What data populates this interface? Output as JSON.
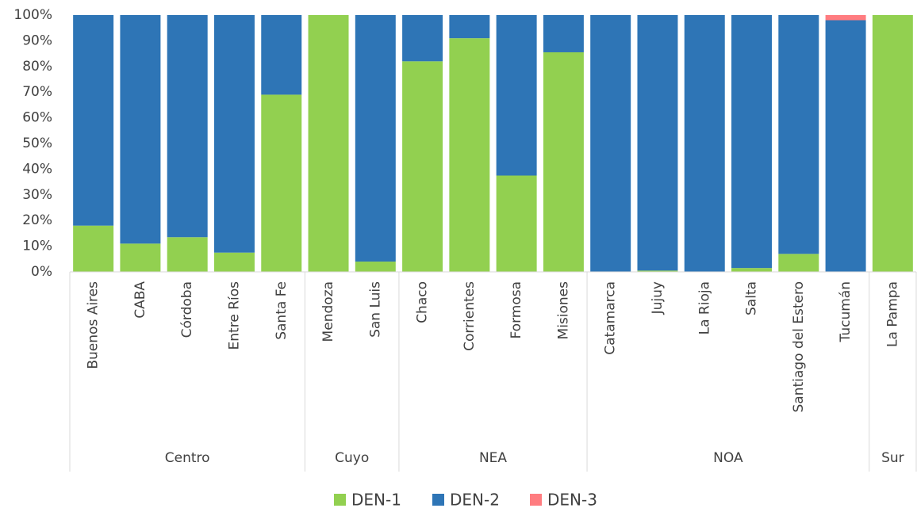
{
  "chart_data": {
    "type": "stacked_bar_100",
    "groups": [
      {
        "name": "Centro",
        "categories": [
          "Buenos Aires",
          "CABA",
          "Córdoba",
          "Entre Ríos",
          "Santa Fe"
        ]
      },
      {
        "name": "Cuyo",
        "categories": [
          "Mendoza",
          "San Luis"
        ]
      },
      {
        "name": "NEA",
        "categories": [
          "Chaco",
          "Corrientes",
          "Formosa",
          "Misiones"
        ]
      },
      {
        "name": "NOA",
        "categories": [
          "Catamarca",
          "Jujuy",
          "La Rioja",
          "Salta",
          "Santiago del Estero",
          "Tucumán"
        ]
      },
      {
        "name": "Sur",
        "categories": [
          "La Pampa"
        ]
      }
    ],
    "series": [
      {
        "name": "DEN-1",
        "color": "#92d050",
        "values": [
          18,
          11,
          13.5,
          7.5,
          69,
          100,
          4,
          82,
          91,
          37.5,
          85.5,
          0,
          0.5,
          0,
          1.5,
          7,
          0,
          100
        ]
      },
      {
        "name": "DEN-2",
        "color": "#2e75b6",
        "values": [
          82,
          89,
          86.5,
          92.5,
          31,
          0,
          96,
          18,
          9,
          62.5,
          14.5,
          100,
          99.5,
          100,
          98.5,
          93,
          98,
          0
        ]
      },
      {
        "name": "DEN-3",
        "color": "#ff7c80",
        "values": [
          0,
          0,
          0,
          0,
          0,
          0,
          0,
          0,
          0,
          0,
          0,
          0,
          0,
          0,
          0,
          0,
          2,
          0
        ]
      }
    ],
    "ylim": [
      0,
      100
    ],
    "yticks": [
      {
        "value": 0,
        "label": "0%"
      },
      {
        "value": 10,
        "label": "10%"
      },
      {
        "value": 20,
        "label": "20%"
      },
      {
        "value": 30,
        "label": "30%"
      },
      {
        "value": 40,
        "label": "40%"
      },
      {
        "value": 50,
        "label": "50%"
      },
      {
        "value": 60,
        "label": "60%"
      },
      {
        "value": 70,
        "label": "70%"
      },
      {
        "value": 80,
        "label": "80%"
      },
      {
        "value": 90,
        "label": "90%"
      },
      {
        "value": 100,
        "label": "100%"
      }
    ],
    "legend": "bottom"
  }
}
